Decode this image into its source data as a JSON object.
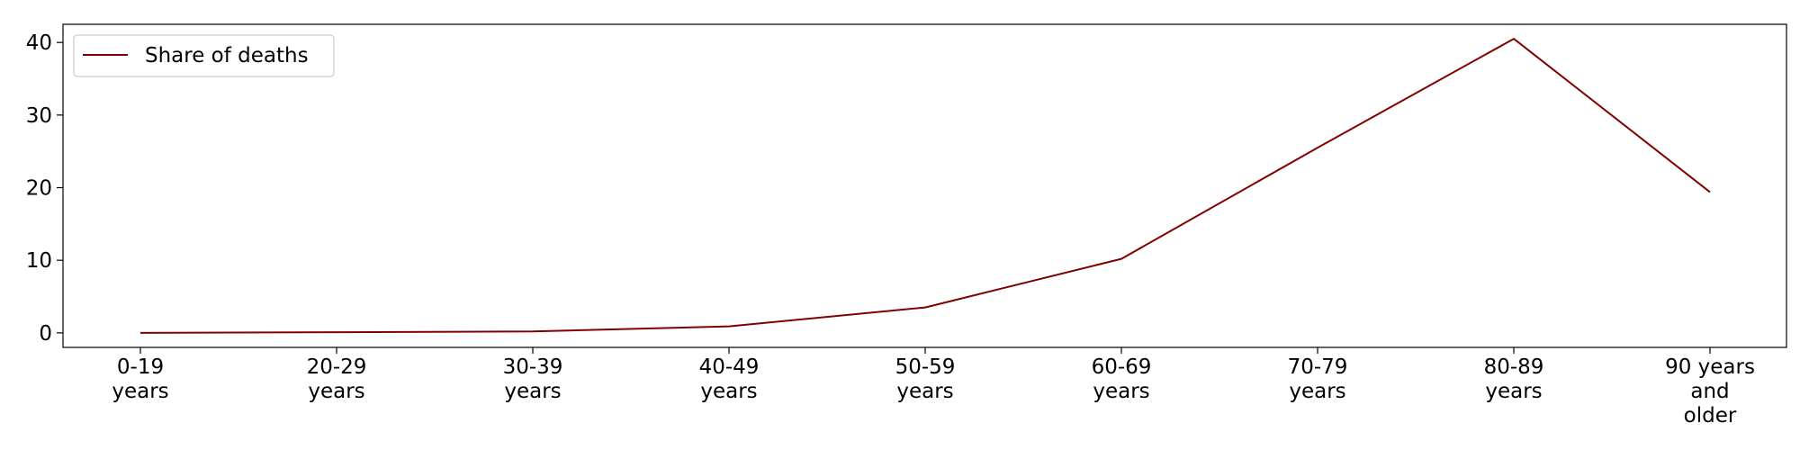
{
  "chart_data": {
    "type": "line",
    "title": "",
    "xlabel": "",
    "ylabel": "",
    "categories": [
      [
        "0-19",
        "years"
      ],
      [
        "20-29",
        "years"
      ],
      [
        "30-39",
        "years"
      ],
      [
        "40-49",
        "years"
      ],
      [
        "50-59",
        "years"
      ],
      [
        "60-69",
        "years"
      ],
      [
        "70-79",
        "years"
      ],
      [
        "80-89",
        "years"
      ],
      [
        "90 years",
        "and",
        "older"
      ]
    ],
    "series": [
      {
        "name": "Share of deaths",
        "color": "#800000",
        "values": [
          0.0,
          0.1,
          0.2,
          0.9,
          3.5,
          10.2,
          25.5,
          40.5,
          19.4
        ]
      }
    ],
    "yticks": [
      0,
      10,
      20,
      30,
      40
    ],
    "ylim": [
      -2.0,
      42.5
    ],
    "grid": false,
    "legend_position": "upper left"
  }
}
